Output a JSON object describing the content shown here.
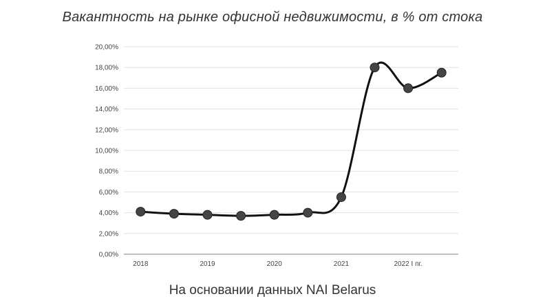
{
  "page": {
    "title": "Вакантность на рынке офисной недвижимости, в % от стока",
    "caption": "На основании данных NAI Belarus"
  },
  "chart_data": {
    "type": "line",
    "title": "Вакантность на рынке офисной недвижимости, в % от стока",
    "xlabel": "",
    "ylabel": "",
    "x_tick_labels": [
      "2018",
      "2019",
      "2020",
      "2021",
      "2022 I пг."
    ],
    "y_tick_labels": [
      "0,00%",
      "2,00%",
      "4,00%",
      "6,00%",
      "8,00%",
      "10,00%",
      "12,00%",
      "14,00%",
      "16,00%",
      "18,00%",
      "20,00%"
    ],
    "ylim": [
      0,
      20
    ],
    "x_domain": [
      2017.75,
      2022.75
    ],
    "grid": "horizontal",
    "smooth": true,
    "series": [
      {
        "color": "#111111",
        "marker_color": "#444444",
        "points": [
          {
            "x": 2018.0,
            "y": 4.1
          },
          {
            "x": 2018.5,
            "y": 3.9
          },
          {
            "x": 2019.0,
            "y": 3.8
          },
          {
            "x": 2019.5,
            "y": 3.7
          },
          {
            "x": 2020.0,
            "y": 3.8
          },
          {
            "x": 2020.5,
            "y": 4.0
          },
          {
            "x": 2021.0,
            "y": 5.5
          },
          {
            "x": 2021.5,
            "y": 18.0
          },
          {
            "x": 2022.0,
            "y": 16.0
          },
          {
            "x": 2022.5,
            "y": 17.5
          }
        ]
      }
    ]
  }
}
